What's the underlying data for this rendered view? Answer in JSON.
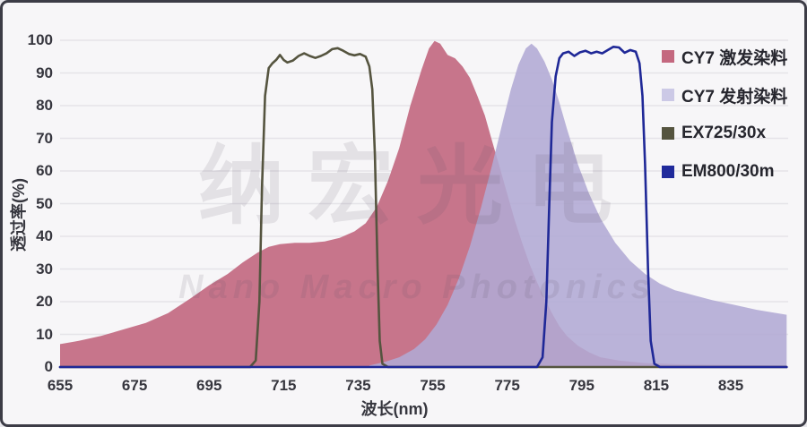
{
  "colors": {
    "background": "#f7f6f8",
    "frame_border": "#3c3c46",
    "grid": "#e5e3e8",
    "tick_text": "#36363e",
    "excitation_fill": "#c7758b",
    "emission_fill": "#b2aad4",
    "ex_filter_line": "#55543f",
    "em_filter_line": "#1f2897"
  },
  "watermark": {
    "line1": "纳宏光电",
    "line2": "Nano Macro Photonics"
  },
  "axes": {
    "x_label": "波长(nm)",
    "y_label": "透过率(%)",
    "x_ticks": [
      655,
      675,
      695,
      715,
      735,
      755,
      775,
      795,
      815,
      835
    ],
    "y_ticks": [
      0,
      10,
      20,
      30,
      40,
      50,
      60,
      70,
      80,
      90,
      100
    ]
  },
  "legend": {
    "items": [
      {
        "label": "CY7 激发染料",
        "color": "#c4687f"
      },
      {
        "label": "CY7 发射染料",
        "color": "#ccc9e6"
      },
      {
        "label": "EX725/30x",
        "color": "#55543f"
      },
      {
        "label": "EM800/30m",
        "color": "#202a9b"
      }
    ]
  },
  "chart_data": {
    "type": "area",
    "title": "",
    "xlabel": "波长(nm)",
    "ylabel": "透过率(%)",
    "x_range": [
      655,
      850
    ],
    "ylim": [
      0,
      100
    ],
    "grid": true,
    "legend_position": "top-right",
    "series": [
      {
        "name": "CY7 激发染料",
        "style": "area",
        "color": "#c7758b",
        "opacity": 1,
        "points": [
          [
            655,
            7
          ],
          [
            660,
            8
          ],
          [
            666,
            9.5
          ],
          [
            672,
            11.5
          ],
          [
            678,
            13.5
          ],
          [
            684,
            16.5
          ],
          [
            690,
            21
          ],
          [
            695,
            25
          ],
          [
            700,
            28.5
          ],
          [
            704,
            32
          ],
          [
            708,
            35
          ],
          [
            711,
            36.8
          ],
          [
            714,
            37.6
          ],
          [
            718,
            38
          ],
          [
            722,
            38
          ],
          [
            726,
            38.4
          ],
          [
            730,
            39.5
          ],
          [
            734,
            41.5
          ],
          [
            737,
            44
          ],
          [
            740,
            49
          ],
          [
            743,
            57
          ],
          [
            746,
            67
          ],
          [
            749,
            80
          ],
          [
            752,
            91
          ],
          [
            754,
            97.5
          ],
          [
            755.5,
            99.8
          ],
          [
            757,
            99
          ],
          [
            759,
            95.5
          ],
          [
            761,
            94.5
          ],
          [
            763,
            92
          ],
          [
            765,
            88.5
          ],
          [
            767,
            83
          ],
          [
            769,
            77
          ],
          [
            771,
            69
          ],
          [
            773,
            61
          ],
          [
            775,
            53
          ],
          [
            777,
            45
          ],
          [
            779,
            38
          ],
          [
            781,
            31.5
          ],
          [
            783,
            26
          ],
          [
            785,
            21
          ],
          [
            787,
            16.5
          ],
          [
            789,
            12.5
          ],
          [
            791,
            9.5
          ],
          [
            794,
            6.5
          ],
          [
            797,
            4.5
          ],
          [
            800,
            3
          ],
          [
            805,
            2
          ],
          [
            812,
            1.2
          ],
          [
            822,
            0.8
          ],
          [
            835,
            0.6
          ],
          [
            850,
            0.5
          ]
        ]
      },
      {
        "name": "CY7 发射染料",
        "style": "area",
        "color": "#b2aad4",
        "opacity": 0.88,
        "points": [
          [
            738,
            0.5
          ],
          [
            742,
            1.5
          ],
          [
            746,
            3
          ],
          [
            750,
            5.5
          ],
          [
            753,
            8.5
          ],
          [
            756,
            13
          ],
          [
            759,
            19
          ],
          [
            762,
            27
          ],
          [
            765,
            37
          ],
          [
            768,
            49
          ],
          [
            771,
            62
          ],
          [
            774,
            76
          ],
          [
            776,
            85
          ],
          [
            778,
            92.5
          ],
          [
            780,
            97.5
          ],
          [
            781.5,
            99
          ],
          [
            783,
            97.5
          ],
          [
            785,
            93.5
          ],
          [
            787,
            88
          ],
          [
            789,
            81
          ],
          [
            791,
            73
          ],
          [
            794,
            62
          ],
          [
            797,
            53
          ],
          [
            800,
            45.5
          ],
          [
            804,
            38
          ],
          [
            808,
            32.5
          ],
          [
            812,
            28.5
          ],
          [
            816,
            25.5
          ],
          [
            820,
            23.5
          ],
          [
            825,
            22
          ],
          [
            830,
            20.5
          ],
          [
            836,
            19
          ],
          [
            842,
            17.5
          ],
          [
            850,
            16
          ]
        ]
      },
      {
        "name": "EX725/30x",
        "style": "line",
        "color": "#55543f",
        "opacity": 1,
        "points": [
          [
            655,
            0
          ],
          [
            706,
            0
          ],
          [
            707.5,
            2
          ],
          [
            708.5,
            20
          ],
          [
            709.2,
            55
          ],
          [
            710,
            83
          ],
          [
            711,
            91.5
          ],
          [
            712,
            93
          ],
          [
            713,
            94
          ],
          [
            714,
            95.5
          ],
          [
            715,
            94
          ],
          [
            716,
            93.2
          ],
          [
            717.5,
            93.8
          ],
          [
            719,
            95.2
          ],
          [
            720.5,
            96
          ],
          [
            722,
            95.2
          ],
          [
            723.5,
            94.6
          ],
          [
            725,
            95.2
          ],
          [
            726.5,
            96
          ],
          [
            728,
            97.3
          ],
          [
            729.5,
            97.6
          ],
          [
            731,
            96.8
          ],
          [
            732.5,
            95.8
          ],
          [
            734,
            95.4
          ],
          [
            735.5,
            95.8
          ],
          [
            737,
            95
          ],
          [
            738,
            92
          ],
          [
            738.8,
            85
          ],
          [
            739.5,
            65
          ],
          [
            740.2,
            30
          ],
          [
            740.8,
            8
          ],
          [
            741.5,
            1
          ],
          [
            743,
            0
          ],
          [
            850,
            0
          ]
        ]
      },
      {
        "name": "EM800/30m",
        "style": "line",
        "color": "#1f2897",
        "opacity": 1,
        "points": [
          [
            655,
            0
          ],
          [
            783,
            0
          ],
          [
            784.5,
            3
          ],
          [
            785.5,
            20
          ],
          [
            786.3,
            50
          ],
          [
            787,
            75
          ],
          [
            788,
            89
          ],
          [
            789,
            94.5
          ],
          [
            790,
            96
          ],
          [
            791.5,
            96.5
          ],
          [
            793,
            95.2
          ],
          [
            794.5,
            96.3
          ],
          [
            796,
            96.8
          ],
          [
            797.5,
            96
          ],
          [
            799,
            96.5
          ],
          [
            800.5,
            96
          ],
          [
            802,
            97
          ],
          [
            803.5,
            98
          ],
          [
            805,
            97.8
          ],
          [
            806.5,
            96.2
          ],
          [
            808,
            97
          ],
          [
            809.5,
            96.5
          ],
          [
            810.5,
            93
          ],
          [
            811.3,
            83
          ],
          [
            812,
            62
          ],
          [
            812.8,
            30
          ],
          [
            813.5,
            8
          ],
          [
            814.5,
            1
          ],
          [
            816,
            0
          ],
          [
            850,
            0
          ]
        ]
      }
    ]
  }
}
